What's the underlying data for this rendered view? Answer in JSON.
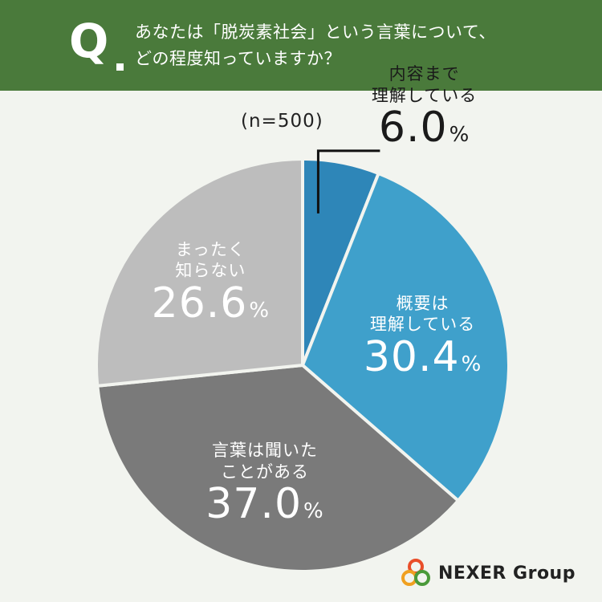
{
  "question": {
    "mark": "Q",
    "line1": "あなたは「脱炭素社会」という言葉について、",
    "line2": "どの程度知っていますか？"
  },
  "sample_size": "(n=500)",
  "chart_data": {
    "type": "pie",
    "categories": [
      [
        "内容まで",
        "理解している"
      ],
      [
        "概要は",
        "理解している"
      ],
      [
        "言葉は聞いた",
        "ことがある"
      ],
      [
        "まったく",
        "知らない"
      ]
    ],
    "values": [
      6.0,
      30.4,
      37.0,
      26.6
    ],
    "value_labels": [
      "6.0",
      "30.4",
      "37.0",
      "26.6"
    ],
    "unit": "%",
    "colors": [
      "#2e86b8",
      "#3fa0cb",
      "#7a7a7a",
      "#bdbdbd"
    ],
    "start_angle_deg": 0,
    "direction": "clockwise"
  },
  "brand": {
    "name": "NEXER Group",
    "logo_colors": [
      "#e94e2a",
      "#f0a020",
      "#4a9a3a"
    ]
  }
}
